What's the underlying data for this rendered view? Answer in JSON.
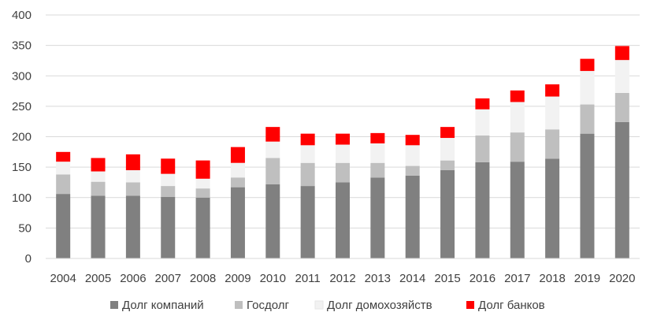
{
  "chart_data": {
    "type": "bar",
    "stacked": true,
    "title": "",
    "xlabel": "",
    "ylabel": "",
    "ylim": [
      0,
      400
    ],
    "yticks": [
      "0",
      "50",
      "100",
      "150",
      "200",
      "250",
      "300",
      "350",
      "400"
    ],
    "grid": true,
    "legend_position": "bottom",
    "categories": [
      "2004",
      "2005",
      "2006",
      "2007",
      "2008",
      "2009",
      "2010",
      "2011",
      "2012",
      "2013",
      "2014",
      "2015",
      "2016",
      "2017",
      "2018",
      "2019",
      "2020"
    ],
    "series": [
      {
        "name": "Долг компаний",
        "color": "#808080",
        "values": [
          106,
          103,
          103,
          101,
          100,
          117,
          122,
          119,
          125,
          133,
          136,
          145,
          158,
          159,
          164,
          205,
          224
        ]
      },
      {
        "name": "Госдолг",
        "color": "#bfbfbf",
        "values": [
          32,
          23,
          22,
          18,
          15,
          16,
          43,
          38,
          32,
          24,
          16,
          16,
          44,
          48,
          48,
          48,
          48
        ]
      },
      {
        "name": "Долг домохозяйств",
        "color": "#f2f2f2",
        "values": [
          21,
          17,
          20,
          20,
          16,
          24,
          27,
          29,
          30,
          32,
          34,
          37,
          43,
          50,
          54,
          55,
          54
        ]
      },
      {
        "name": "Долг банков",
        "color": "#ff0000",
        "values": [
          16,
          22,
          26,
          25,
          30,
          26,
          24,
          19,
          18,
          17,
          17,
          18,
          18,
          19,
          20,
          20,
          23
        ]
      }
    ]
  }
}
